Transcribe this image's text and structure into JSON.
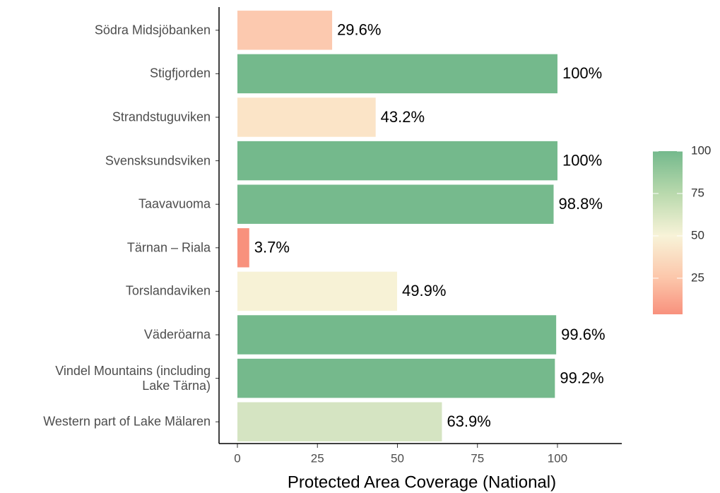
{
  "chart_data": {
    "type": "bar",
    "orientation": "horizontal",
    "x_label": "Protected Area Coverage (National)",
    "categories": [
      "Södra Midsjöbanken",
      "Stigfjorden",
      "Strandstuguviken",
      "Svensksundsviken",
      "Taavavuoma",
      "Tärnan – Riala",
      "Torslandaviken",
      "Väderöarna",
      "Vindel Mountains (including\nLake Tärna)",
      "Western part of Lake Mälaren"
    ],
    "values": [
      29.6,
      100,
      43.2,
      100,
      98.8,
      3.7,
      49.9,
      99.6,
      99.2,
      63.9
    ],
    "value_labels": [
      "29.6%",
      "100%",
      "43.2%",
      "100%",
      "98.8%",
      "3.7%",
      "49.9%",
      "99.6%",
      "99.2%",
      "63.9%"
    ],
    "colors": [
      "#fcc9af",
      "#74b98c",
      "#fbe4c7",
      "#74b98c",
      "#76ba8d",
      "#f8917d",
      "#f7f2d6",
      "#74b98c",
      "#75b98c",
      "#d5e4c2"
    ],
    "xlim": [
      -5.74,
      120.1
    ],
    "xticks": [
      0,
      25,
      50,
      75,
      100
    ],
    "colorbar": {
      "lim": [
        3.7,
        100
      ],
      "ticks": [
        25,
        50,
        75,
        100
      ],
      "stops": [
        {
          "value": 3.7,
          "color": "#f8917d"
        },
        {
          "value": 25,
          "color": "#fcc6aa"
        },
        {
          "value": 50,
          "color": "#f8f3d8"
        },
        {
          "value": 75,
          "color": "#b9d9ad"
        },
        {
          "value": 100,
          "color": "#74b98c"
        }
      ]
    }
  }
}
